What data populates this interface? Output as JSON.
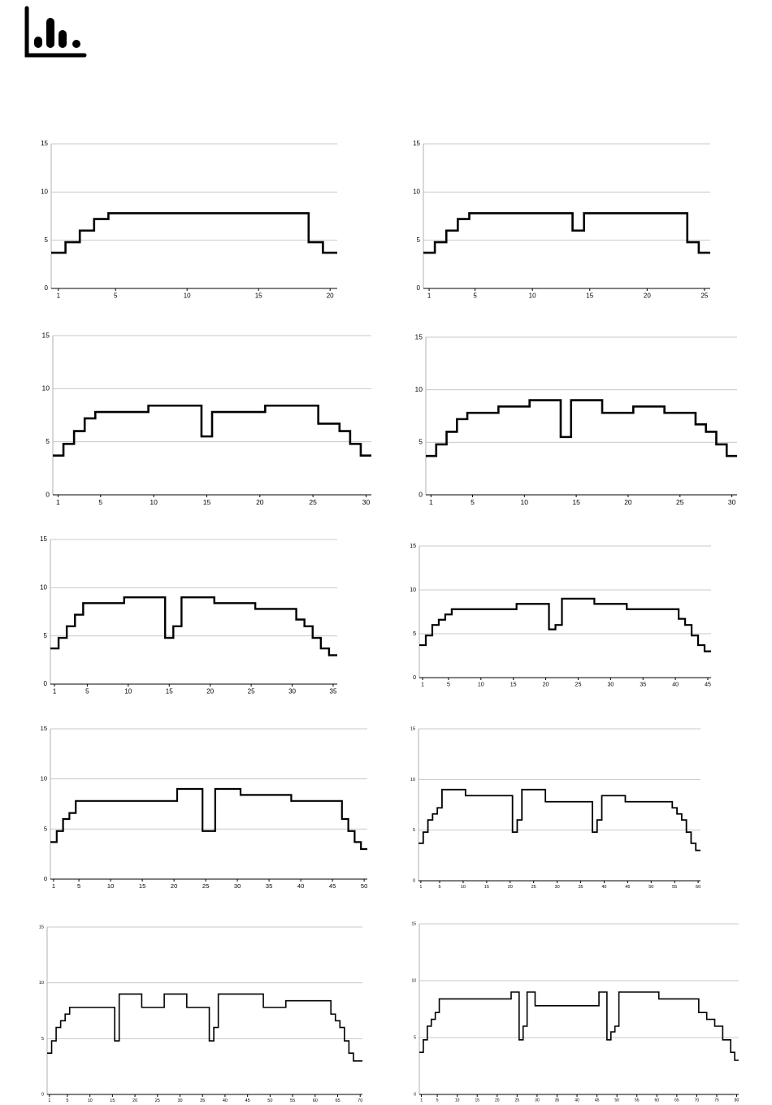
{
  "chart_data": [
    {
      "type": "line",
      "step": "mid",
      "color": "#000000",
      "grid": true,
      "x": [
        1,
        2,
        3,
        4,
        5,
        6,
        7,
        8,
        9,
        10,
        11,
        12,
        13,
        14,
        15,
        16,
        17,
        18,
        19,
        20
      ],
      "values": [
        3.7,
        4.8,
        6.0,
        7.2,
        7.8,
        7.8,
        7.8,
        7.8,
        7.8,
        7.8,
        7.8,
        7.8,
        7.8,
        7.8,
        7.8,
        7.8,
        7.8,
        7.8,
        4.8,
        3.7
      ],
      "xlim": [
        0.5,
        20.5
      ],
      "xticks": [
        1,
        5,
        10,
        15,
        20
      ],
      "ylim": [
        0,
        15
      ],
      "yticks": [
        0,
        5,
        10,
        15
      ]
    },
    {
      "type": "line",
      "step": "mid",
      "color": "#000000",
      "grid": true,
      "x": [
        1,
        2,
        3,
        4,
        5,
        6,
        7,
        8,
        9,
        10,
        11,
        12,
        13,
        14,
        15,
        16,
        17,
        18,
        19,
        20,
        21,
        22,
        23,
        24,
        25
      ],
      "values": [
        3.7,
        4.8,
        6.0,
        7.2,
        7.8,
        7.8,
        7.8,
        7.8,
        7.8,
        7.8,
        7.8,
        7.8,
        7.8,
        6.0,
        7.8,
        7.8,
        7.8,
        7.8,
        7.8,
        7.8,
        7.8,
        7.8,
        7.8,
        4.8,
        3.7
      ],
      "xlim": [
        0.5,
        25.5
      ],
      "xticks": [
        1,
        5,
        10,
        15,
        20,
        25
      ],
      "ylim": [
        0,
        15
      ],
      "yticks": [
        0,
        5,
        10,
        15
      ]
    },
    {
      "type": "line",
      "step": "mid",
      "color": "#000000",
      "grid": true,
      "x": [
        1,
        2,
        3,
        4,
        5,
        6,
        7,
        8,
        9,
        10,
        11,
        12,
        13,
        14,
        15,
        16,
        17,
        18,
        19,
        20,
        21,
        22,
        23,
        24,
        25,
        26,
        27,
        28,
        29,
        30
      ],
      "values": [
        3.7,
        4.8,
        6.0,
        7.2,
        7.8,
        7.8,
        7.8,
        7.8,
        7.8,
        8.4,
        8.4,
        8.4,
        8.4,
        8.4,
        5.5,
        7.8,
        7.8,
        7.8,
        7.8,
        7.8,
        8.4,
        8.4,
        8.4,
        8.4,
        8.4,
        6.7,
        6.7,
        6.0,
        4.8,
        3.7
      ],
      "xlim": [
        0.5,
        30.5
      ],
      "xticks": [
        1,
        5,
        10,
        15,
        20,
        25,
        30
      ],
      "ylim": [
        0,
        15
      ],
      "yticks": [
        0,
        5,
        10,
        15
      ]
    },
    {
      "type": "line",
      "step": "mid",
      "color": "#000000",
      "grid": true,
      "x": [
        1,
        2,
        3,
        4,
        5,
        6,
        7,
        8,
        9,
        10,
        11,
        12,
        13,
        14,
        15,
        16,
        17,
        18,
        19,
        20,
        21,
        22,
        23,
        24,
        25,
        26,
        27,
        28,
        29,
        30
      ],
      "values": [
        3.7,
        4.8,
        6.0,
        7.2,
        7.8,
        7.8,
        7.8,
        8.4,
        8.4,
        8.4,
        9.0,
        9.0,
        9.0,
        5.5,
        9.0,
        9.0,
        9.0,
        7.8,
        7.8,
        7.8,
        8.4,
        8.4,
        8.4,
        7.8,
        7.8,
        7.8,
        6.7,
        6.0,
        4.8,
        3.7
      ],
      "xlim": [
        0.5,
        30.5
      ],
      "xticks": [
        1,
        5,
        10,
        15,
        20,
        25,
        30
      ],
      "ylim": [
        0,
        15
      ],
      "yticks": [
        0,
        5,
        10,
        15
      ]
    },
    {
      "type": "line",
      "step": "mid",
      "color": "#000000",
      "grid": true,
      "x": [
        1,
        2,
        3,
        4,
        5,
        6,
        7,
        8,
        9,
        10,
        11,
        12,
        13,
        14,
        15,
        16,
        17,
        18,
        19,
        20,
        21,
        22,
        23,
        24,
        25,
        26,
        27,
        28,
        29,
        30,
        31,
        32,
        33,
        34,
        35
      ],
      "values": [
        3.7,
        4.8,
        6.0,
        7.2,
        8.4,
        8.4,
        8.4,
        8.4,
        8.4,
        9.0,
        9.0,
        9.0,
        9.0,
        9.0,
        4.8,
        6.0,
        9.0,
        9.0,
        9.0,
        9.0,
        8.4,
        8.4,
        8.4,
        8.4,
        8.4,
        7.8,
        7.8,
        7.8,
        7.8,
        7.8,
        6.7,
        6.0,
        4.8,
        3.7,
        3.0
      ],
      "xlim": [
        0.5,
        35.5
      ],
      "xticks": [
        1,
        5,
        10,
        15,
        20,
        25,
        30,
        35
      ],
      "ylim": [
        0,
        15
      ],
      "yticks": [
        0,
        5,
        10,
        15
      ]
    },
    {
      "type": "line",
      "step": "mid",
      "color": "#000000",
      "grid": true,
      "x": [
        1,
        2,
        3,
        4,
        5,
        6,
        7,
        8,
        9,
        10,
        11,
        12,
        13,
        14,
        15,
        16,
        17,
        18,
        19,
        20,
        21,
        22,
        23,
        24,
        25,
        26,
        27,
        28,
        29,
        30,
        31,
        32,
        33,
        34,
        35,
        36,
        37,
        38,
        39,
        40,
        41,
        42,
        43,
        44,
        45
      ],
      "values": [
        3.7,
        4.8,
        6.0,
        6.6,
        7.2,
        7.8,
        7.8,
        7.8,
        7.8,
        7.8,
        7.8,
        7.8,
        7.8,
        7.8,
        7.8,
        8.4,
        8.4,
        8.4,
        8.4,
        8.4,
        5.5,
        6.0,
        9.0,
        9.0,
        9.0,
        9.0,
        9.0,
        8.4,
        8.4,
        8.4,
        8.4,
        8.4,
        7.8,
        7.8,
        7.8,
        7.8,
        7.8,
        7.8,
        7.8,
        7.8,
        6.7,
        6.0,
        4.8,
        3.7,
        3.0
      ],
      "xlim": [
        0.5,
        45.5
      ],
      "xticks": [
        1,
        5,
        10,
        15,
        20,
        25,
        30,
        35,
        40,
        45
      ],
      "ylim": [
        0,
        15
      ],
      "yticks": [
        0,
        5,
        10,
        15
      ]
    },
    {
      "type": "line",
      "step": "mid",
      "color": "#000000",
      "grid": true,
      "x": [
        1,
        2,
        3,
        4,
        5,
        6,
        7,
        8,
        9,
        10,
        11,
        12,
        13,
        14,
        15,
        16,
        17,
        18,
        19,
        20,
        21,
        22,
        23,
        24,
        25,
        26,
        27,
        28,
        29,
        30,
        31,
        32,
        33,
        34,
        35,
        36,
        37,
        38,
        39,
        40,
        41,
        42,
        43,
        44,
        45,
        46,
        47,
        48,
        49,
        50
      ],
      "values": [
        3.7,
        4.8,
        6.0,
        6.6,
        7.8,
        7.8,
        7.8,
        7.8,
        7.8,
        7.8,
        7.8,
        7.8,
        7.8,
        7.8,
        7.8,
        7.8,
        7.8,
        7.8,
        7.8,
        7.8,
        9.0,
        9.0,
        9.0,
        9.0,
        4.8,
        4.8,
        9.0,
        9.0,
        9.0,
        9.0,
        8.4,
        8.4,
        8.4,
        8.4,
        8.4,
        8.4,
        8.4,
        8.4,
        7.8,
        7.8,
        7.8,
        7.8,
        7.8,
        7.8,
        7.8,
        7.8,
        6.0,
        4.8,
        3.7,
        3.0
      ],
      "xlim": [
        0.5,
        50.5
      ],
      "xticks": [
        1,
        5,
        10,
        15,
        20,
        25,
        30,
        35,
        40,
        45,
        50
      ],
      "ylim": [
        0,
        15
      ],
      "yticks": [
        0,
        5,
        10,
        15
      ]
    },
    {
      "type": "line",
      "step": "mid",
      "color": "#000000",
      "grid": true,
      "x": [
        1,
        2,
        3,
        4,
        5,
        6,
        7,
        8,
        9,
        10,
        11,
        12,
        13,
        14,
        15,
        16,
        17,
        18,
        19,
        20,
        21,
        22,
        23,
        24,
        25,
        26,
        27,
        28,
        29,
        30,
        31,
        32,
        33,
        34,
        35,
        36,
        37,
        38,
        39,
        40,
        41,
        42,
        43,
        44,
        45,
        46,
        47,
        48,
        49,
        50,
        51,
        52,
        53,
        54,
        55,
        56,
        57,
        58,
        59,
        60
      ],
      "values": [
        3.7,
        4.8,
        6.0,
        6.6,
        7.2,
        9.0,
        9.0,
        9.0,
        9.0,
        9.0,
        8.4,
        8.4,
        8.4,
        8.4,
        8.4,
        8.4,
        8.4,
        8.4,
        8.4,
        8.4,
        4.8,
        6.0,
        9.0,
        9.0,
        9.0,
        9.0,
        9.0,
        7.8,
        7.8,
        7.8,
        7.8,
        7.8,
        7.8,
        7.8,
        7.8,
        7.8,
        7.8,
        4.8,
        6.0,
        8.4,
        8.4,
        8.4,
        8.4,
        8.4,
        7.8,
        7.8,
        7.8,
        7.8,
        7.8,
        7.8,
        7.8,
        7.8,
        7.8,
        7.8,
        7.2,
        6.6,
        6.0,
        4.8,
        3.7,
        3.0
      ],
      "xlim": [
        0.5,
        60.5
      ],
      "xticks": [
        1,
        5,
        10,
        15,
        20,
        25,
        30,
        35,
        40,
        45,
        50,
        55,
        60
      ],
      "ylim": [
        0,
        15
      ],
      "yticks": [
        0,
        5,
        10,
        15
      ]
    },
    {
      "type": "line",
      "step": "mid",
      "color": "#000000",
      "grid": true,
      "x": [
        1,
        2,
        3,
        4,
        5,
        6,
        7,
        8,
        9,
        10,
        11,
        12,
        13,
        14,
        15,
        16,
        17,
        18,
        19,
        20,
        21,
        22,
        23,
        24,
        25,
        26,
        27,
        28,
        29,
        30,
        31,
        32,
        33,
        34,
        35,
        36,
        37,
        38,
        39,
        40,
        41,
        42,
        43,
        44,
        45,
        46,
        47,
        48,
        49,
        50,
        51,
        52,
        53,
        54,
        55,
        56,
        57,
        58,
        59,
        60,
        61,
        62,
        63,
        64,
        65,
        66,
        67,
        68,
        69,
        70
      ],
      "values": [
        3.7,
        4.8,
        6.0,
        6.6,
        7.2,
        7.8,
        7.8,
        7.8,
        7.8,
        7.8,
        7.8,
        7.8,
        7.8,
        7.8,
        7.8,
        4.8,
        9.0,
        9.0,
        9.0,
        9.0,
        9.0,
        7.8,
        7.8,
        7.8,
        7.8,
        7.8,
        9.0,
        9.0,
        9.0,
        9.0,
        9.0,
        7.8,
        7.8,
        7.8,
        7.8,
        7.8,
        4.8,
        6.0,
        9.0,
        9.0,
        9.0,
        9.0,
        9.0,
        9.0,
        9.0,
        9.0,
        9.0,
        9.0,
        7.8,
        7.8,
        7.8,
        7.8,
        7.8,
        8.4,
        8.4,
        8.4,
        8.4,
        8.4,
        8.4,
        8.4,
        8.4,
        8.4,
        8.4,
        7.2,
        6.6,
        6.0,
        4.8,
        3.7,
        3.0,
        3.0
      ],
      "xlim": [
        0.5,
        70.5
      ],
      "xticks": [
        1,
        5,
        10,
        15,
        20,
        25,
        30,
        35,
        40,
        45,
        50,
        55,
        60,
        65,
        70
      ],
      "ylim": [
        0,
        15
      ],
      "yticks": [
        0,
        5,
        10,
        15
      ]
    },
    {
      "type": "line",
      "step": "mid",
      "color": "#000000",
      "grid": true,
      "x": [
        1,
        2,
        3,
        4,
        5,
        6,
        7,
        8,
        9,
        10,
        11,
        12,
        13,
        14,
        15,
        16,
        17,
        18,
        19,
        20,
        21,
        22,
        23,
        24,
        25,
        26,
        27,
        28,
        29,
        30,
        31,
        32,
        33,
        34,
        35,
        36,
        37,
        38,
        39,
        40,
        41,
        42,
        43,
        44,
        45,
        46,
        47,
        48,
        49,
        50,
        51,
        52,
        53,
        54,
        55,
        56,
        57,
        58,
        59,
        60,
        61,
        62,
        63,
        64,
        65,
        66,
        67,
        68,
        69,
        70,
        71,
        72,
        73,
        74,
        75,
        76,
        77,
        78,
        79,
        80
      ],
      "values": [
        3.7,
        4.8,
        6.0,
        6.6,
        7.2,
        8.4,
        8.4,
        8.4,
        8.4,
        8.4,
        8.4,
        8.4,
        8.4,
        8.4,
        8.4,
        8.4,
        8.4,
        8.4,
        8.4,
        8.4,
        8.4,
        8.4,
        8.4,
        9.0,
        9.0,
        4.8,
        6.0,
        9.0,
        9.0,
        7.8,
        7.8,
        7.8,
        7.8,
        7.8,
        7.8,
        7.8,
        7.8,
        7.8,
        7.8,
        7.8,
        7.8,
        7.8,
        7.8,
        7.8,
        7.8,
        9.0,
        9.0,
        4.8,
        5.5,
        6.0,
        9.0,
        9.0,
        9.0,
        9.0,
        9.0,
        9.0,
        9.0,
        9.0,
        9.0,
        9.0,
        8.4,
        8.4,
        8.4,
        8.4,
        8.4,
        8.4,
        8.4,
        8.4,
        8.4,
        8.4,
        7.2,
        7.2,
        6.6,
        6.6,
        6.0,
        6.0,
        4.8,
        4.8,
        3.7,
        3.0
      ],
      "xlim": [
        0.5,
        80.5
      ],
      "xticks": [
        1,
        5,
        10,
        15,
        20,
        25,
        30,
        35,
        40,
        45,
        50,
        55,
        60,
        65,
        70,
        75,
        80
      ],
      "ylim": [
        0,
        15
      ],
      "yticks": [
        0,
        5,
        10,
        15
      ]
    }
  ]
}
